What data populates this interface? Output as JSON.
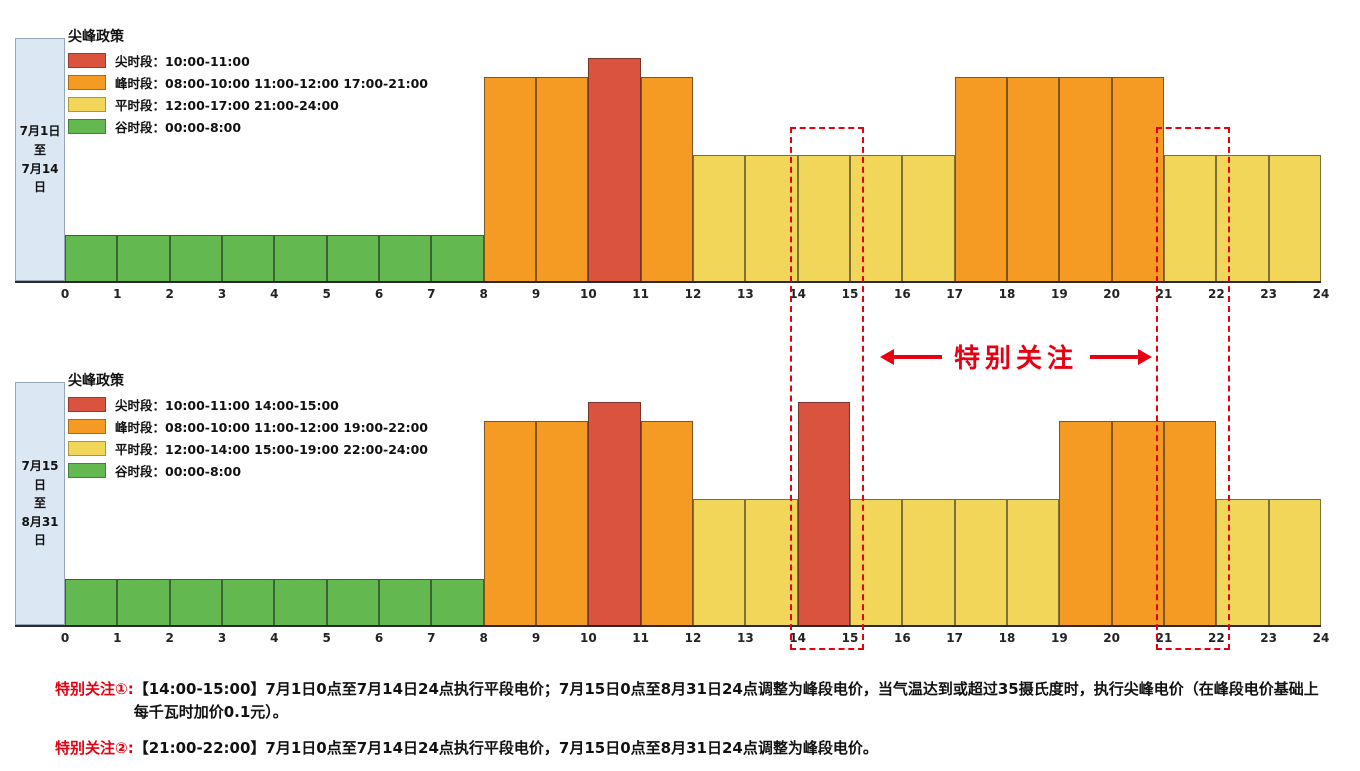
{
  "palette": {
    "sharp": "#d9533f",
    "peak": "#f59a23",
    "flat": "#f1d65a",
    "valley": "#63b84f",
    "highlight": "#e60012",
    "period_box_bg": "#dbe7f3"
  },
  "x_ticks": [
    0,
    1,
    2,
    3,
    4,
    5,
    6,
    7,
    8,
    9,
    10,
    11,
    12,
    13,
    14,
    15,
    16,
    17,
    18,
    19,
    20,
    21,
    22,
    23,
    24
  ],
  "chart_data": [
    {
      "type": "bar",
      "title": "尖峰政策",
      "period": "7月1日至7月14日",
      "period_label": "7月1日\n至\n7月14日",
      "xlabel": "hour",
      "x_range": [
        0,
        24
      ],
      "legend": [
        {
          "type": "sharp",
          "label": "尖时段：10:00-11:00"
        },
        {
          "type": "peak",
          "label": "峰时段：08:00-10:00 11:00-12:00 17:00-21:00"
        },
        {
          "type": "flat",
          "label": "平时段：12:00-17:00 21:00-24:00"
        },
        {
          "type": "valley",
          "label": "谷时段：00:00-8:00"
        }
      ],
      "level_names": {
        "1": "谷时段",
        "2": "平时段",
        "3": "峰时段",
        "4": "尖时段"
      },
      "levels_by_hour": [
        1,
        1,
        1,
        1,
        1,
        1,
        1,
        1,
        3,
        3,
        4,
        3,
        2,
        2,
        2,
        2,
        2,
        3,
        3,
        3,
        3,
        2,
        2,
        2
      ]
    },
    {
      "type": "bar",
      "title": "尖峰政策",
      "period": "7月15日至8月31日",
      "period_label": "7月15日\n至\n8月31日",
      "xlabel": "hour",
      "x_range": [
        0,
        24
      ],
      "legend": [
        {
          "type": "sharp",
          "label": "尖时段：10:00-11:00 14:00-15:00"
        },
        {
          "type": "peak",
          "label": "峰时段：08:00-10:00 11:00-12:00 19:00-22:00"
        },
        {
          "type": "flat",
          "label": "平时段：12:00-14:00 15:00-19:00 22:00-24:00"
        },
        {
          "type": "valley",
          "label": "谷时段：00:00-8:00"
        }
      ],
      "level_names": {
        "1": "谷时段",
        "2": "平时段",
        "3": "峰时段",
        "4": "尖时段"
      },
      "levels_by_hour": [
        1,
        1,
        1,
        1,
        1,
        1,
        1,
        1,
        3,
        3,
        4,
        3,
        2,
        2,
        4,
        2,
        2,
        2,
        2,
        3,
        3,
        3,
        2,
        2
      ]
    }
  ],
  "highlights": {
    "label": "特别关注",
    "ranges": [
      {
        "from": 14,
        "to": 15
      },
      {
        "from": 21,
        "to": 22
      }
    ]
  },
  "notes": [
    {
      "label": "特别关注①:",
      "text": "【14:00-15:00】7月1日0点至7月14日24点执行平段电价；7月15日0点至8月31日24点调整为峰段电价，当气温达到或超过35摄氏度时，执行尖峰电价（在峰段电价基础上每千瓦时加价0.1元）。"
    },
    {
      "label": "特别关注②:",
      "text": "【21:00-22:00】7月1日0点至7月14日24点执行平段电价，7月15日0点至8月31日24点调整为峰段电价。"
    }
  ]
}
